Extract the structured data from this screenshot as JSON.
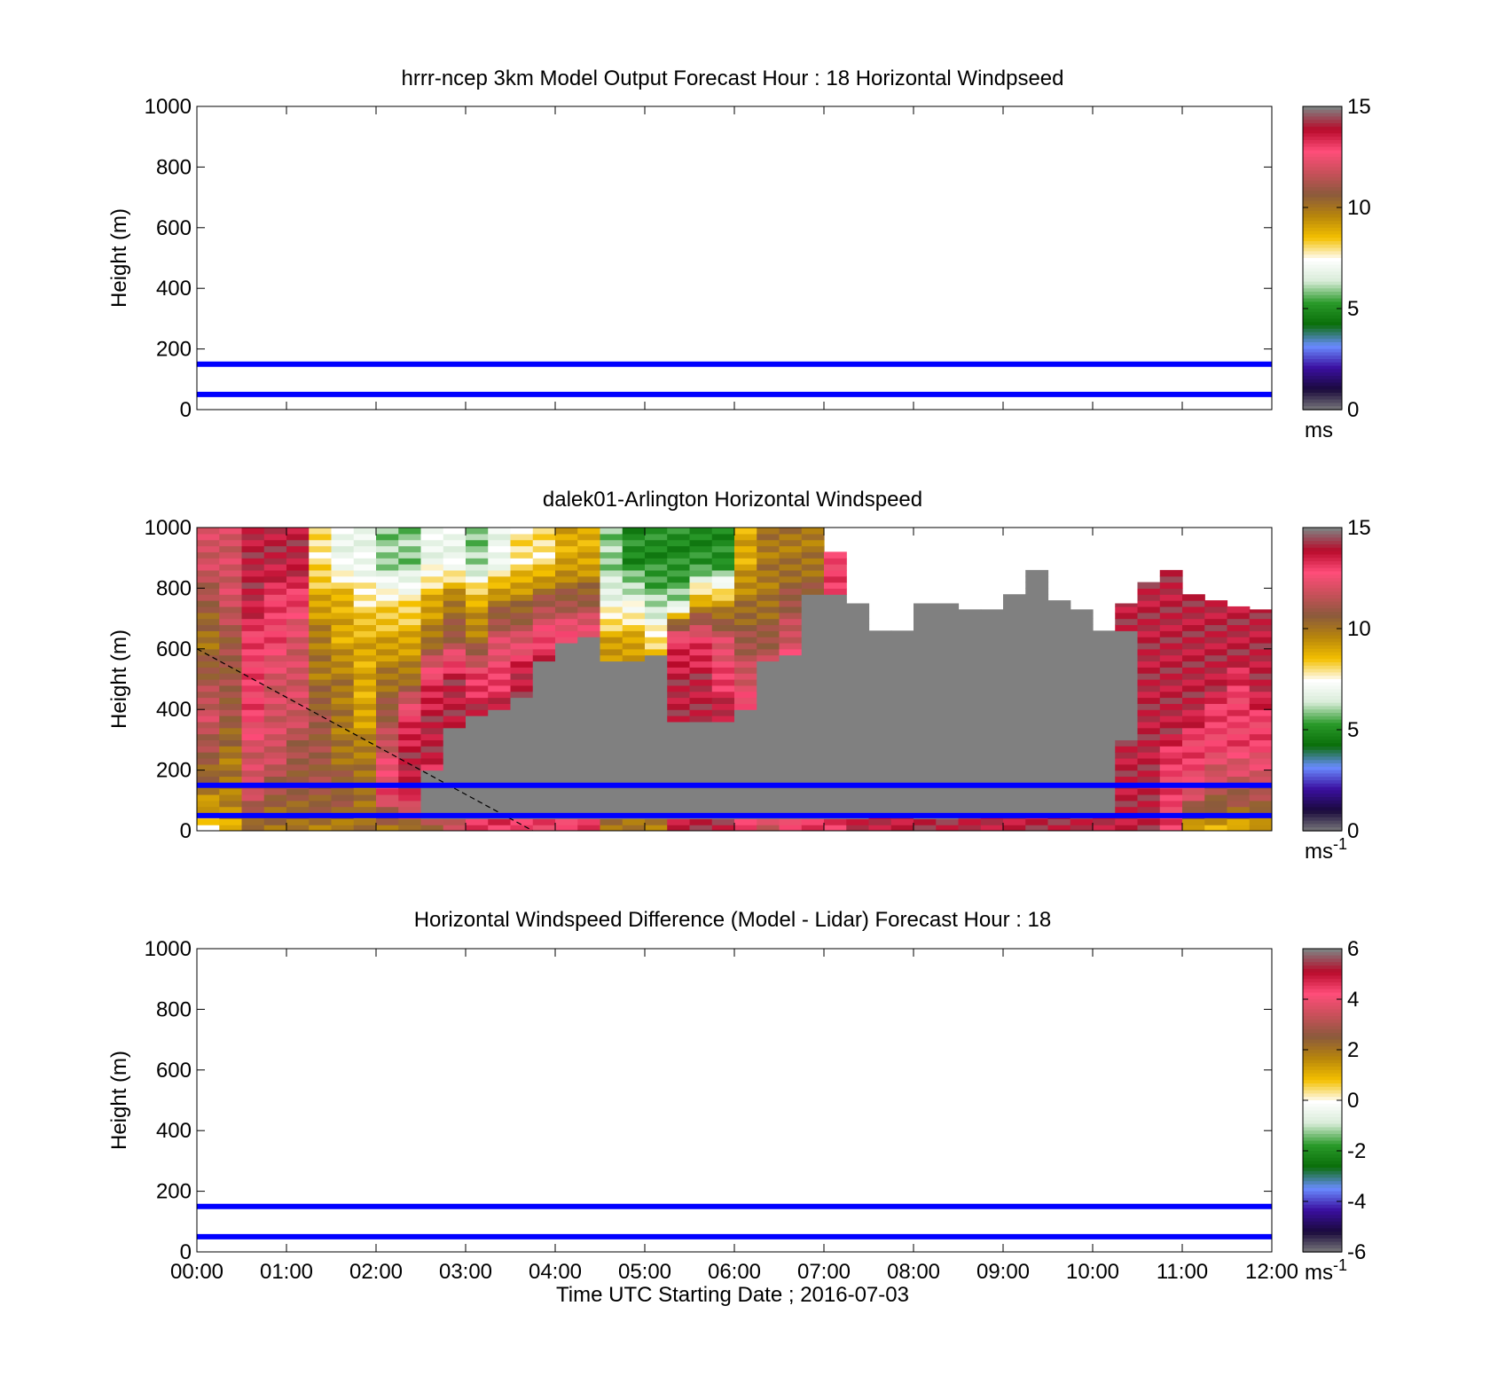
{
  "figure": {
    "xlabel": "Time UTC  Starting Date ; 2016-07-03",
    "x_ticks": [
      "00:00",
      "01:00",
      "02:00",
      "03:00",
      "04:00",
      "05:00",
      "06:00",
      "07:00",
      "08:00",
      "09:00",
      "10:00",
      "11:00",
      "12:00"
    ],
    "y_ticks": [
      "0",
      "200",
      "400",
      "600",
      "800",
      "1000"
    ],
    "ylabel": "Height (m)"
  },
  "chart_data": [
    {
      "type": "heatmap",
      "title": "hrrr-ncep 3km Model Output   Forecast Hour : 18 Horizontal Windpseed",
      "xlabel": "",
      "ylabel": "Height (m)",
      "xlim": [
        0,
        12
      ],
      "ylim": [
        0,
        1000
      ],
      "grid": false,
      "reference_lines_m": [
        50,
        150
      ],
      "reference_line_color": "#0000ff",
      "colorbar": {
        "min": 0,
        "max": 15,
        "ticks": [
          "0",
          "5",
          "10",
          "15"
        ],
        "unit": "ms"
      },
      "cells": []
    },
    {
      "type": "heatmap",
      "title": "dalek01-Arlington  Horizontal Windspeed",
      "xlabel": "",
      "ylabel": "Height (m)",
      "xlim": [
        0,
        12
      ],
      "ylim": [
        0,
        1000
      ],
      "grid": false,
      "reference_lines_m": [
        50,
        150
      ],
      "reference_line_color": "#0000ff",
      "colorbar": {
        "min": 0,
        "max": 15,
        "ticks": [
          "0",
          "5",
          "10",
          "15"
        ],
        "unit": "ms",
        "unit_sup": "-1"
      },
      "no_data_color": "#808080",
      "columns": [
        {
          "t": 0.0,
          "top": 1000,
          "grey_from": null,
          "grey_to": null,
          "profile": [
            8,
            10,
            11,
            12,
            11,
            10,
            11,
            12
          ]
        },
        {
          "t": 0.25,
          "top": 1000,
          "grey_from": null,
          "grey_to": null,
          "profile": [
            9,
            10,
            10,
            11,
            11,
            11,
            12,
            12
          ]
        },
        {
          "t": 0.5,
          "top": 1000,
          "grey_from": null,
          "grey_to": null,
          "profile": [
            10,
            12,
            12,
            13,
            13,
            13,
            14,
            14
          ]
        },
        {
          "t": 0.75,
          "top": 1000,
          "grey_from": null,
          "grey_to": null,
          "profile": [
            10,
            11,
            12,
            12,
            12,
            13,
            13,
            14
          ]
        },
        {
          "t": 1.0,
          "top": 1000,
          "grey_from": null,
          "grey_to": null,
          "profile": [
            10,
            11,
            11,
            12,
            12,
            12,
            13,
            14
          ]
        },
        {
          "t": 1.25,
          "top": 1000,
          "grey_from": null,
          "grey_to": null,
          "profile": [
            10,
            11,
            11,
            11,
            10,
            10,
            9,
            8
          ]
        },
        {
          "t": 1.5,
          "top": 1000,
          "grey_from": null,
          "grey_to": null,
          "profile": [
            10,
            11,
            10,
            10,
            10,
            9,
            9,
            7
          ]
        },
        {
          "t": 1.75,
          "top": 1000,
          "grey_from": null,
          "grey_to": null,
          "profile": [
            10,
            10,
            10,
            9,
            9,
            9,
            8,
            7
          ]
        },
        {
          "t": 2.0,
          "top": 1000,
          "grey_from": null,
          "grey_to": null,
          "profile": [
            10,
            13,
            12,
            11,
            10,
            9,
            8,
            6
          ]
        },
        {
          "t": 2.25,
          "top": 1000,
          "grey_from": null,
          "grey_to": null,
          "profile": [
            10,
            14,
            14,
            13,
            10,
            9,
            8,
            6
          ]
        },
        {
          "t": 2.5,
          "top": 1000,
          "grey_from": 30,
          "grey_to": 200,
          "profile": [
            11,
            13,
            14,
            14,
            13,
            10,
            9,
            7
          ]
        },
        {
          "t": 2.75,
          "top": 1000,
          "grey_from": 30,
          "grey_to": 340,
          "profile": [
            12,
            12,
            13,
            14,
            14,
            11,
            10,
            7
          ]
        },
        {
          "t": 3.0,
          "top": 1000,
          "grey_from": 30,
          "grey_to": 370,
          "profile": [
            13,
            13,
            14,
            14,
            13,
            10,
            9,
            6
          ]
        },
        {
          "t": 3.25,
          "top": 1000,
          "grey_from": 30,
          "grey_to": 390,
          "profile": [
            13,
            14,
            14,
            14,
            13,
            12,
            10,
            7
          ]
        },
        {
          "t": 3.5,
          "top": 1000,
          "grey_from": 30,
          "grey_to": 440,
          "profile": [
            13,
            14,
            14,
            14,
            14,
            12,
            10,
            8
          ]
        },
        {
          "t": 3.75,
          "top": 1000,
          "grey_from": 30,
          "grey_to": 560,
          "profile": [
            13,
            14,
            14,
            14,
            14,
            13,
            11,
            8
          ]
        },
        {
          "t": 4.0,
          "top": 1000,
          "grey_from": 30,
          "grey_to": 610,
          "profile": [
            13,
            14,
            14,
            14,
            14,
            13,
            11,
            9
          ]
        },
        {
          "t": 4.25,
          "top": 1000,
          "grey_from": 30,
          "grey_to": 630,
          "profile": [
            13,
            14,
            14,
            14,
            14,
            13,
            11,
            9
          ]
        },
        {
          "t": 4.5,
          "top": 1000,
          "grey_from": 30,
          "grey_to": 560,
          "profile": [
            10,
            10,
            10,
            10,
            10,
            9,
            7,
            6
          ]
        },
        {
          "t": 4.75,
          "top": 1000,
          "grey_from": 30,
          "grey_to": 550,
          "profile": [
            10,
            10,
            10,
            10,
            10,
            9,
            7,
            5
          ]
        },
        {
          "t": 5.0,
          "top": 1000,
          "grey_from": 30,
          "grey_to": 580,
          "profile": [
            10,
            10,
            10,
            10,
            10,
            8,
            6,
            5
          ]
        },
        {
          "t": 5.25,
          "top": 1000,
          "grey_from": 30,
          "grey_to": 350,
          "profile": [
            14,
            14,
            14,
            14,
            14,
            13,
            6,
            5
          ]
        },
        {
          "t": 5.5,
          "top": 1000,
          "grey_from": 30,
          "grey_to": 350,
          "profile": [
            14,
            14,
            14,
            14,
            14,
            13,
            9,
            5
          ]
        },
        {
          "t": 5.75,
          "top": 1000,
          "grey_from": 30,
          "grey_to": 350,
          "profile": [
            14,
            14,
            14,
            14,
            13,
            12,
            9,
            5
          ]
        },
        {
          "t": 6.0,
          "top": 1000,
          "grey_from": 30,
          "grey_to": 400,
          "profile": [
            13,
            14,
            14,
            13,
            12,
            11,
            10,
            9
          ]
        },
        {
          "t": 6.25,
          "top": 1000,
          "grey_from": 30,
          "grey_to": 560,
          "profile": [
            12,
            12,
            12,
            12,
            12,
            11,
            10,
            10
          ]
        },
        {
          "t": 6.5,
          "top": 1000,
          "grey_from": 30,
          "grey_to": 580,
          "profile": [
            13,
            13,
            13,
            13,
            13,
            12,
            11,
            10
          ]
        },
        {
          "t": 6.75,
          "top": 1000,
          "grey_from": 30,
          "grey_to": 780,
          "profile": [
            13,
            13,
            12,
            12,
            12,
            12,
            11,
            10
          ]
        },
        {
          "t": 7.0,
          "top": 920,
          "grey_from": 30,
          "grey_to": 780,
          "profile": [
            13,
            13,
            13,
            13,
            13,
            13,
            13,
            13
          ]
        },
        {
          "t": 7.25,
          "top": 750,
          "grey_from": 30,
          "grey_to": 750,
          "profile": [
            14,
            14,
            14,
            14,
            14,
            14,
            14,
            14
          ]
        },
        {
          "t": 7.5,
          "top": 660,
          "grey_from": 60,
          "grey_to": 660,
          "profile": [
            14,
            14,
            14,
            14,
            14,
            14,
            14,
            14
          ]
        },
        {
          "t": 7.75,
          "top": 660,
          "grey_from": 60,
          "grey_to": 660,
          "profile": [
            14,
            14,
            14,
            14,
            14,
            14,
            14,
            14
          ]
        },
        {
          "t": 8.0,
          "top": 750,
          "grey_from": 40,
          "grey_to": 750,
          "profile": [
            14,
            14,
            14,
            14,
            14,
            14,
            14,
            14
          ]
        },
        {
          "t": 8.25,
          "top": 750,
          "grey_from": 40,
          "grey_to": 750,
          "profile": [
            14,
            14,
            14,
            14,
            14,
            14,
            14,
            14
          ]
        },
        {
          "t": 8.5,
          "top": 730,
          "grey_from": 60,
          "grey_to": 730,
          "profile": [
            14,
            14,
            14,
            14,
            14,
            14,
            14,
            14
          ]
        },
        {
          "t": 8.75,
          "top": 730,
          "grey_from": 60,
          "grey_to": 730,
          "profile": [
            14,
            14,
            14,
            14,
            14,
            14,
            14,
            14
          ]
        },
        {
          "t": 9.0,
          "top": 780,
          "grey_from": 60,
          "grey_to": 780,
          "profile": [
            14,
            14,
            14,
            14,
            14,
            14,
            14,
            14
          ]
        },
        {
          "t": 9.25,
          "top": 860,
          "grey_from": 60,
          "grey_to": 860,
          "profile": [
            14,
            14,
            14,
            14,
            14,
            14,
            14,
            14
          ]
        },
        {
          "t": 9.5,
          "top": 760,
          "grey_from": 60,
          "grey_to": 760,
          "profile": [
            14,
            14,
            14,
            14,
            14,
            14,
            14,
            14
          ]
        },
        {
          "t": 9.75,
          "top": 730,
          "grey_from": 60,
          "grey_to": 730,
          "profile": [
            14,
            14,
            14,
            14,
            14,
            14,
            14,
            14
          ]
        },
        {
          "t": 10.0,
          "top": 660,
          "grey_from": 60,
          "grey_to": 660,
          "profile": [
            14,
            14,
            14,
            14,
            14,
            14,
            14,
            14
          ]
        },
        {
          "t": 10.25,
          "top": 750,
          "grey_from": 300,
          "grey_to": 650,
          "profile": [
            14,
            14,
            14,
            14,
            14,
            14,
            14,
            14
          ]
        },
        {
          "t": 10.5,
          "top": 820,
          "grey_from": null,
          "grey_to": null,
          "profile": [
            14,
            14,
            14,
            14,
            14,
            14,
            14,
            14
          ]
        },
        {
          "t": 10.75,
          "top": 860,
          "grey_from": null,
          "grey_to": null,
          "profile": [
            13,
            13,
            13,
            14,
            14,
            14,
            14,
            14
          ]
        },
        {
          "t": 11.0,
          "top": 780,
          "grey_from": null,
          "grey_to": null,
          "profile": [
            9,
            12,
            13,
            13,
            14,
            14,
            14,
            14
          ]
        },
        {
          "t": 11.25,
          "top": 760,
          "grey_from": null,
          "grey_to": null,
          "profile": [
            9,
            11,
            12,
            13,
            13,
            14,
            14,
            14
          ]
        },
        {
          "t": 11.5,
          "top": 740,
          "grey_from": null,
          "grey_to": null,
          "profile": [
            9,
            11,
            12,
            13,
            13,
            13,
            14,
            14
          ]
        },
        {
          "t": 11.75,
          "top": 730,
          "grey_from": null,
          "grey_to": null,
          "profile": [
            9,
            11,
            12,
            13,
            13,
            14,
            14,
            14
          ]
        }
      ]
    },
    {
      "type": "heatmap",
      "title": "Horizontal Windspeed Difference (Model - Lidar) Forecast Hour : 18",
      "xlabel": "Time UTC  Starting Date ; 2016-07-03",
      "ylabel": "Height (m)",
      "xlim": [
        0,
        12
      ],
      "ylim": [
        0,
        1000
      ],
      "grid": false,
      "reference_lines_m": [
        50,
        150
      ],
      "reference_line_color": "#0000ff",
      "colorbar": {
        "min": -6,
        "max": 6,
        "ticks": [
          "-6",
          "-4",
          "-2",
          "0",
          "2",
          "4",
          "6"
        ],
        "unit": "ms",
        "unit_sup": "-1"
      },
      "cells": []
    }
  ],
  "annotations": {
    "dashed_line": {
      "from": [
        0,
        600
      ],
      "to": [
        3.75,
        0
      ],
      "style": "dashed",
      "color": "#000000"
    }
  },
  "colormap_stops": [
    "#808080",
    "#1a0a3c",
    "#3a0fa0",
    "#6a8cff",
    "#0a6e0a",
    "#2a9a2a",
    "#d8ecd8",
    "#ffffff",
    "#f4c000",
    "#b8860b",
    "#8b5a3c",
    "#c8505a",
    "#ff4d7a",
    "#b80a2a",
    "#808080"
  ]
}
